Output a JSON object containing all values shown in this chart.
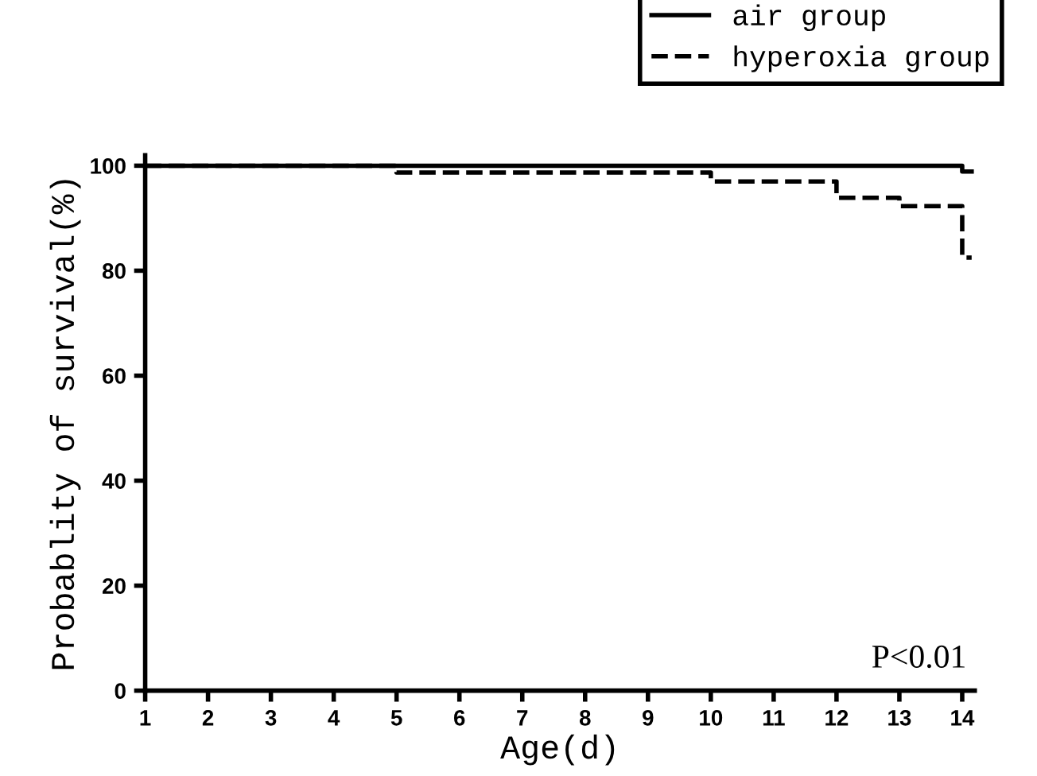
{
  "chart_data": {
    "type": "step",
    "xlabel": "Age(d)",
    "ylabel": "Probablity of survival(%)",
    "xlim": [
      1,
      14.2
    ],
    "ylim": [
      0,
      102
    ],
    "xticks": [
      1,
      2,
      3,
      4,
      5,
      6,
      7,
      8,
      9,
      10,
      11,
      12,
      13,
      14
    ],
    "yticks": [
      0,
      20,
      40,
      60,
      80,
      100
    ],
    "series": [
      {
        "name": "air group",
        "color": "#000000",
        "line_style": "solid",
        "x": [
          1,
          14,
          14.15
        ],
        "values": [
          100,
          98.9,
          98.9
        ]
      },
      {
        "name": "hyperoxia group",
        "color": "#000000",
        "line_style": "dashed",
        "x": [
          1,
          5,
          10,
          12,
          13,
          14,
          14.15
        ],
        "values": [
          100,
          98.7,
          97,
          93.9,
          92.3,
          82.5,
          82.5
        ]
      }
    ],
    "annotations": [
      "P<0.01"
    ],
    "legend": "top right",
    "grid": false
  }
}
